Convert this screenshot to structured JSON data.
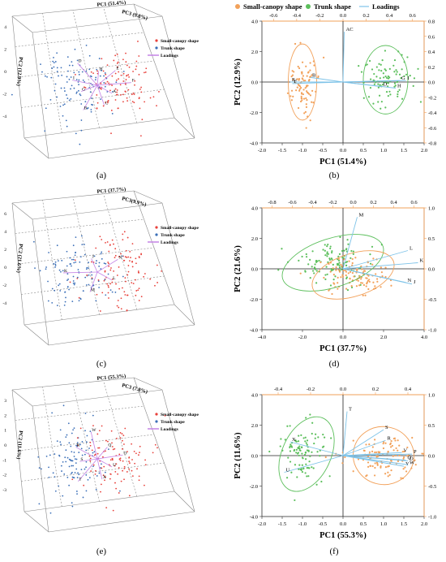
{
  "captions": {
    "a": "(a)",
    "b": "(b)",
    "c": "(c)",
    "d": "(d)",
    "e": "(e)",
    "f": "(f)"
  },
  "colors": {
    "small": "#e8403a",
    "trunk": "#3b6fb8",
    "loadings": "#c484e6",
    "orange": "#f2a15a",
    "green": "#5cbf5c",
    "loadLine": "#7ec3e8",
    "frame": "#f2a15a"
  },
  "panels3d": [
    {
      "key": "a",
      "axes": [
        "PC1 (51.4%)",
        "PC3 (9.8%)",
        "PC2 (12.9%)"
      ],
      "legend": [
        "Small-canopy shape",
        "Trunk shape",
        "Loadings"
      ],
      "zticks": [
        "4",
        "2",
        "0",
        "-2",
        "-4"
      ],
      "letters": [
        "A",
        "C",
        "B",
        "G",
        "I",
        "D",
        "H",
        "E",
        "F"
      ]
    },
    {
      "key": "c",
      "axes": [
        "PC1 (37.7%)",
        "PC3(9.9%)",
        "PC2 (21.6%)"
      ],
      "legend": [
        "Small-canopy shape",
        "Trunk shape",
        "Loadings"
      ],
      "zticks": [
        "6",
        "4",
        "2",
        "0",
        "-2",
        "-4"
      ],
      "letters": [
        "L",
        "M",
        "K",
        "J",
        "N"
      ]
    },
    {
      "key": "e",
      "axes": [
        "PC1 (55.3%)",
        "PC3 (7.8%)",
        "PC2 (11.6%)"
      ],
      "legend": [
        "Small-canopy shape",
        "Trunk shape",
        "Loadings"
      ],
      "zticks": [
        "3",
        "2",
        "1",
        "0",
        "-1",
        "-2",
        "-3"
      ],
      "letters": [
        "U",
        "X",
        "T",
        "S",
        "R",
        "W",
        "Q",
        "O"
      ]
    }
  ],
  "chart_data": [
    {
      "id": "b",
      "type": "scatter",
      "legend": [
        "Small-canopy shape",
        "Trunk shape",
        "Loadings"
      ],
      "xlabel": "PC1 (51.4%)",
      "ylabel": "PC2 (12.9%)",
      "xlim": [
        -2.0,
        2.0
      ],
      "ylim": [
        -4.0,
        4.0
      ],
      "xticks": [
        -2.0,
        -1.5,
        -1.0,
        -0.5,
        0.0,
        0.5,
        1.0,
        1.5,
        2.0
      ],
      "yticks": [
        -4.0,
        -2.0,
        0.0,
        2.0,
        4.0
      ],
      "top_ticks": [
        "-0.6",
        "-0.4",
        "-0.2",
        "0.0",
        "0.2",
        "0.4",
        "0.6"
      ],
      "right_ticks": [
        "0.8",
        "0.6",
        "0.4",
        "0.2",
        "0.0",
        "-0.2",
        "-0.4",
        "-0.6",
        "-0.8"
      ],
      "ellipses": [
        {
          "cx": -1.0,
          "cy": 0.0,
          "rx": 0.35,
          "ry": 2.5,
          "group": "small"
        },
        {
          "cx": 1.05,
          "cy": 0.15,
          "rx": 0.55,
          "ry": 2.25,
          "group": "trunk"
        }
      ],
      "loadings": [
        {
          "label": "AC",
          "x": 0.03,
          "y": 3.3
        },
        {
          "label": "B",
          "x": -0.8,
          "y": 0.3
        },
        {
          "label": "E",
          "x": -1.3,
          "y": 0.0
        },
        {
          "label": "F",
          "x": -1.25,
          "y": -0.1
        },
        {
          "label": "G",
          "x": 1.4,
          "y": 0.1
        },
        {
          "label": "I",
          "x": 1.55,
          "y": 0.1
        },
        {
          "label": "D",
          "x": 0.95,
          "y": -0.3
        },
        {
          "label": "H",
          "x": 1.3,
          "y": -0.4
        }
      ],
      "cloud_small": {
        "cx": -1.0,
        "cy": 0.0,
        "sx": 0.18,
        "sy": 1.1,
        "n": 90
      },
      "cloud_trunk": {
        "cx": 1.05,
        "cy": 0.2,
        "sx": 0.3,
        "sy": 1.0,
        "n": 90
      }
    },
    {
      "id": "d",
      "type": "scatter",
      "legend": [],
      "xlabel": "PC1 (37.7%)",
      "ylabel": "PC2 (21.6%)",
      "xlim": [
        -4.0,
        4.0
      ],
      "ylim": [
        -4.0,
        4.0
      ],
      "xticks": [
        -4.0,
        -2.0,
        0.0,
        2.0,
        4.0
      ],
      "yticks": [
        -4.0,
        -2.0,
        0.0,
        2.0,
        4.0
      ],
      "top_ticks": [
        "-0.8",
        "-0.6",
        "-0.4",
        "-0.2",
        "0.0",
        "0.2",
        "0.4",
        "0.6"
      ],
      "right_ticks": [
        "1.0",
        "0.5",
        "0.0",
        "-0.5",
        "-1.0"
      ],
      "ellipses": [
        {
          "cx": -0.5,
          "cy": 0.4,
          "rx": 2.6,
          "ry": 1.6,
          "rot": -18,
          "group": "trunk"
        },
        {
          "cx": 0.5,
          "cy": -0.4,
          "rx": 2.1,
          "ry": 1.4,
          "rot": -18,
          "group": "small"
        }
      ],
      "loadings": [
        {
          "label": "M",
          "x": 0.7,
          "y": 3.4
        },
        {
          "label": "L",
          "x": 3.2,
          "y": 1.2
        },
        {
          "label": "K",
          "x": 3.7,
          "y": 0.4
        },
        {
          "label": "N",
          "x": 3.1,
          "y": -0.9
        },
        {
          "label": "J",
          "x": 3.4,
          "y": -1.0
        }
      ],
      "cloud_small": {
        "cx": 0.5,
        "cy": -0.4,
        "sx": 0.9,
        "sy": 0.6,
        "n": 110
      },
      "cloud_trunk": {
        "cx": -0.5,
        "cy": 0.5,
        "sx": 1.0,
        "sy": 0.7,
        "n": 110
      }
    },
    {
      "id": "f",
      "type": "scatter",
      "legend": [],
      "xlabel": "PC1 (55.3%)",
      "ylabel": "PC2 (11.6%)",
      "xlim": [
        -2.0,
        2.0
      ],
      "ylim": [
        -4.0,
        4.0
      ],
      "xticks": [
        -2.0,
        -1.5,
        -1.0,
        -0.5,
        0.0,
        0.5,
        1.0,
        1.5,
        2.0
      ],
      "yticks": [
        -4.0,
        -2.0,
        0.0,
        2.0,
        4.0
      ],
      "top_ticks": [
        "-0.4",
        "-0.2",
        "0.0",
        "0.2",
        "0.4"
      ],
      "right_ticks": [
        "1.0",
        "0.5",
        "0.0",
        "-0.5",
        "-1.0"
      ],
      "ellipses": [
        {
          "cx": -0.9,
          "cy": 0.1,
          "rx": 0.6,
          "ry": 2.6,
          "rot": 25,
          "group": "trunk"
        },
        {
          "cx": 1.0,
          "cy": 0.0,
          "rx": 0.75,
          "ry": 1.9,
          "rot": 10,
          "group": "small"
        }
      ],
      "loadings": [
        {
          "label": "T",
          "x": 0.1,
          "y": 2.9
        },
        {
          "label": "X",
          "x": -1.3,
          "y": 0.9
        },
        {
          "label": "U",
          "x": -1.45,
          "y": -1.1
        },
        {
          "label": "S",
          "x": 1.0,
          "y": 1.7
        },
        {
          "label": "R",
          "x": 1.05,
          "y": 1.0
        },
        {
          "label": "V",
          "x": 1.45,
          "y": 0.2
        },
        {
          "label": "P",
          "x": 1.7,
          "y": 0.1
        },
        {
          "label": "Q",
          "x": 1.55,
          "y": -0.3
        },
        {
          "label": "O",
          "x": 1.6,
          "y": -0.35
        },
        {
          "label": "Y",
          "x": 1.5,
          "y": -0.7
        },
        {
          "label": "W",
          "x": 1.6,
          "y": -0.6
        }
      ],
      "cloud_small": {
        "cx": 1.0,
        "cy": -0.1,
        "sx": 0.4,
        "sy": 0.7,
        "n": 110
      },
      "cloud_trunk": {
        "cx": -0.95,
        "cy": 0.2,
        "sx": 0.3,
        "sy": 1.0,
        "n": 100
      }
    }
  ]
}
